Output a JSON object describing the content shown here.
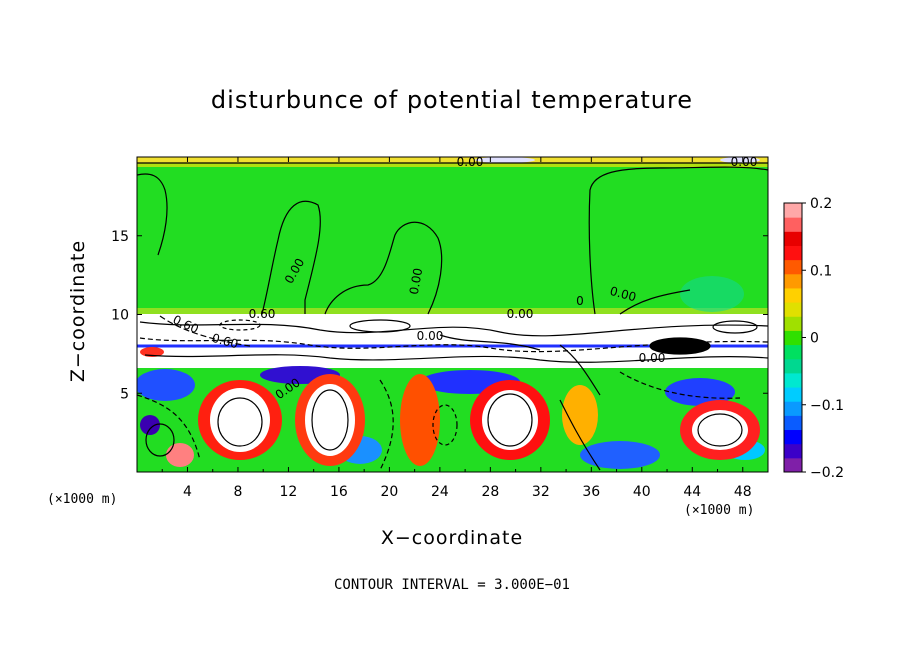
{
  "chart_data": {
    "type": "heatmap",
    "title": "disturbunce of potential temperature",
    "xlabel": "X−coordinate",
    "ylabel": "Z−coordinate",
    "x_unit_label": "(×1000 m)",
    "x_unit_label_secondary": "(×1000 m)",
    "footer": "CONTOUR INTERVAL = 3.000E−01",
    "xlim": [
      0,
      50
    ],
    "ylim": [
      0,
      20
    ],
    "x_ticks": [
      "4",
      "8",
      "12",
      "16",
      "20",
      "24",
      "28",
      "32",
      "36",
      "40",
      "44",
      "48"
    ],
    "y_ticks": [
      "5",
      "10",
      "15"
    ],
    "colorbar": {
      "range": [
        -0.2,
        0.2
      ],
      "tick_labels": [
        "0.2",
        "0.1",
        "0",
        "−0.1",
        "−0.2"
      ],
      "colors": [
        "#7f1fa8",
        "#3b00c8",
        "#0000ff",
        "#0a5cff",
        "#0a9aff",
        "#00ccff",
        "#00e8d0",
        "#00d890",
        "#00e060",
        "#30e000",
        "#a0e000",
        "#e0e000",
        "#ffd000",
        "#ff9a00",
        "#ff5a00",
        "#ff1010",
        "#e80000",
        "#ff6060",
        "#ffa8a8"
      ]
    },
    "contour_labels": [
      "0.00",
      "0.00",
      "0.00",
      "0.00",
      "0.00",
      "0.00",
      "0.60",
      "0.60",
      "0.60",
      "0.00",
      "0.00",
      "0",
      "0.00"
    ],
    "grid": false
  }
}
